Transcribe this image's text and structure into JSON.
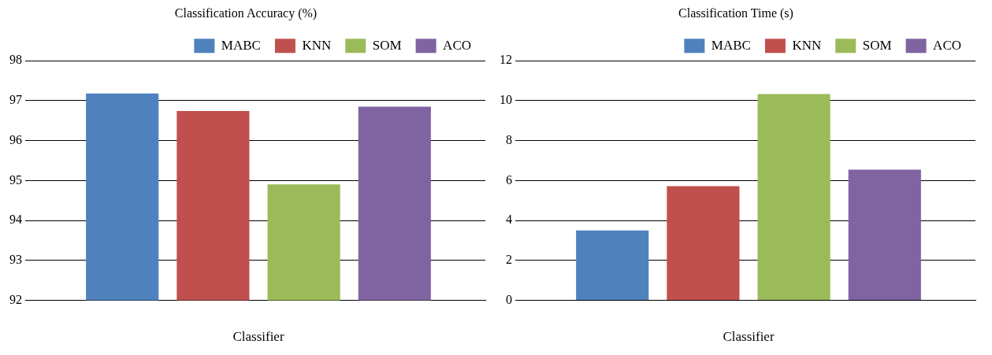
{
  "chart_data": [
    {
      "type": "bar",
      "title": "Classification Accuracy (%)",
      "xlabel": "Classifier",
      "categories": [
        null
      ],
      "series": [
        {
          "name": "MABC",
          "color": "#4f81bd",
          "values": [
            97.18
          ]
        },
        {
          "name": "KNN",
          "color": "#c0504d",
          "values": [
            96.74
          ]
        },
        {
          "name": "SOM",
          "color": "#9bbb59",
          "values": [
            94.9
          ]
        },
        {
          "name": "ACO",
          "color": "#8064a2",
          "values": [
            96.85
          ]
        }
      ],
      "ylim": [
        92,
        98
      ],
      "yticks": [
        92,
        93,
        94,
        95,
        96,
        97,
        98
      ],
      "grid": "y",
      "legend": "top right"
    },
    {
      "type": "bar",
      "title": "Classification Time (s)",
      "xlabel": "Classifier",
      "categories": [
        null
      ],
      "series": [
        {
          "name": "MABC",
          "color": "#4f81bd",
          "values": [
            3.5
          ]
        },
        {
          "name": "KNN",
          "color": "#c0504d",
          "values": [
            5.72
          ]
        },
        {
          "name": "SOM",
          "color": "#9bbb59",
          "values": [
            10.33
          ]
        },
        {
          "name": "ACO",
          "color": "#8064a2",
          "values": [
            6.54
          ]
        }
      ],
      "ylim": [
        0,
        12
      ],
      "yticks": [
        0,
        2,
        4,
        6,
        8,
        10,
        12
      ],
      "grid": "y",
      "legend": "top right"
    }
  ]
}
